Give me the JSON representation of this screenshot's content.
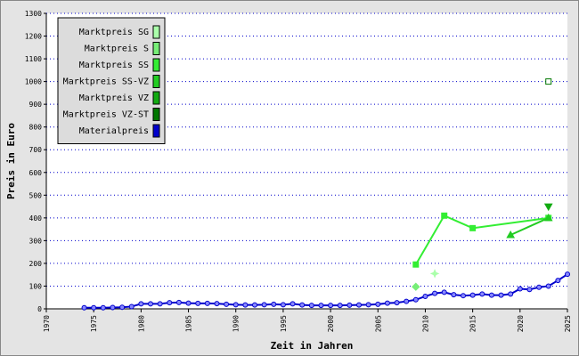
{
  "chart_data": {
    "type": "line",
    "xlabel": "Zeit in Jahren",
    "ylabel": "Preis in Euro",
    "xlim": [
      1970,
      2025
    ],
    "xticks": [
      1970,
      1975,
      1980,
      1985,
      1990,
      1995,
      2000,
      2005,
      2010,
      2015,
      2020,
      2025
    ],
    "ylim": [
      0,
      1300
    ],
    "yticks": [
      0,
      100,
      200,
      300,
      400,
      500,
      600,
      700,
      800,
      900,
      1000,
      1100,
      1200,
      1300
    ],
    "grid": true,
    "legend": "upper left",
    "series": [
      {
        "name": "Marktpreis SG",
        "color": "#aaffaa",
        "marker": "star",
        "x": [
          2011
        ],
        "values": [
          155
        ]
      },
      {
        "name": "Marktpreis S",
        "color": "#77ee77",
        "marker": "diamond",
        "x": [
          2009
        ],
        "values": [
          97
        ]
      },
      {
        "name": "Marktpreis SS",
        "color": "#33ee33",
        "marker": "square",
        "x": [
          2009,
          2012,
          2015,
          2023
        ],
        "values": [
          195,
          410,
          355,
          400
        ]
      },
      {
        "name": "Marktpreis SS-VZ",
        "color": "#22cc22",
        "marker": "triangle-up",
        "x": [
          2023,
          2019
        ],
        "values": [
          400,
          325
        ]
      },
      {
        "name": "Marktpreis VZ",
        "color": "#11aa11",
        "marker": "triangle-down",
        "x": [
          2023
        ],
        "values": [
          450
        ]
      },
      {
        "name": "Marktpreis VZ-ST",
        "color": "#007700",
        "marker": "open-square",
        "x": [
          2023
        ],
        "values": [
          1000
        ]
      },
      {
        "name": "Materialpreis",
        "color": "#0000cc",
        "marker": "circle",
        "x": [
          1974,
          1975,
          1976,
          1977,
          1978,
          1979,
          1980,
          1981,
          1982,
          1983,
          1984,
          1985,
          1986,
          1987,
          1988,
          1989,
          1990,
          1991,
          1992,
          1993,
          1994,
          1995,
          1996,
          1997,
          1998,
          1999,
          2000,
          2001,
          2002,
          2003,
          2004,
          2005,
          2006,
          2007,
          2008,
          2009,
          2010,
          2011,
          2012,
          2013,
          2014,
          2015,
          2016,
          2017,
          2018,
          2019,
          2020,
          2021,
          2022,
          2023,
          2024,
          2025
        ],
        "values": [
          5,
          5,
          5,
          6,
          7,
          10,
          22,
          22,
          22,
          27,
          28,
          25,
          24,
          24,
          23,
          20,
          18,
          17,
          17,
          18,
          20,
          18,
          22,
          17,
          15,
          15,
          15,
          15,
          16,
          17,
          18,
          20,
          25,
          27,
          33,
          40,
          55,
          68,
          73,
          62,
          58,
          60,
          65,
          60,
          60,
          65,
          88,
          85,
          95,
          100,
          125,
          152
        ]
      }
    ]
  }
}
